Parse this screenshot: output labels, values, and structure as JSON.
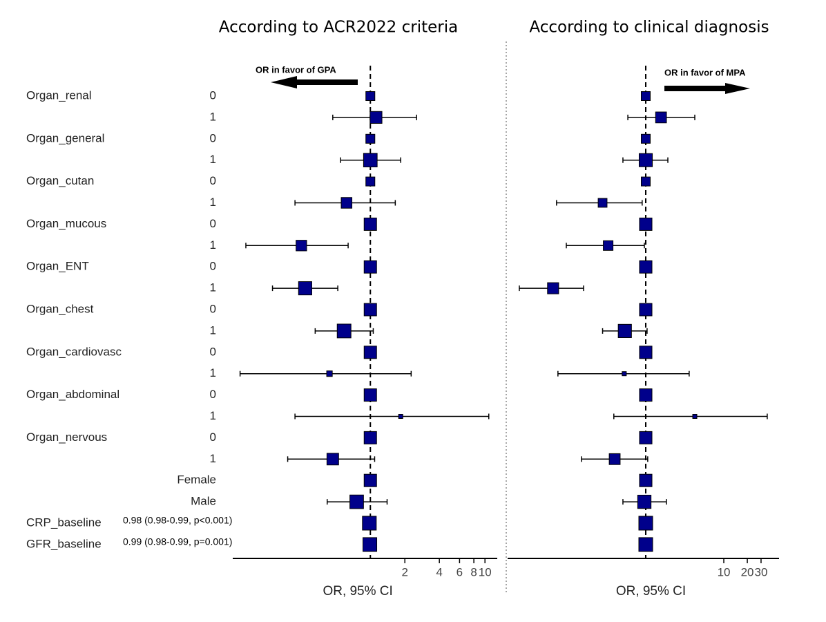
{
  "rows": [
    {
      "group": "Organ_renal",
      "level": "0"
    },
    {
      "level": "1"
    },
    {
      "group": "Organ_general",
      "level": "0"
    },
    {
      "level": "1"
    },
    {
      "group": "Organ_cutan",
      "level": "0"
    },
    {
      "level": "1"
    },
    {
      "group": "Organ_mucous",
      "level": "0"
    },
    {
      "level": "1"
    },
    {
      "group": "Organ_ENT",
      "level": "0"
    },
    {
      "level": "1"
    },
    {
      "group": "Organ_chest",
      "level": "0"
    },
    {
      "level": "1"
    },
    {
      "group": "Organ_cardiovasc",
      "level": "0"
    },
    {
      "level": "1"
    },
    {
      "group": "Organ_abdominal",
      "level": "0"
    },
    {
      "level": "1"
    },
    {
      "group": "Organ_nervous",
      "level": "0"
    },
    {
      "level": "1"
    },
    {
      "level": "Female"
    },
    {
      "level": "Male"
    },
    {
      "group": "CRP_baseline",
      "note": "0.98 (0.98-0.99,  p<0.001)"
    },
    {
      "group": "GFR_baseline",
      "note": "0.99 (0.98-0.99, p=0.001)"
    }
  ],
  "chart_data": [
    {
      "type": "forest",
      "title": "According to ACR2022 criteria",
      "xlabel": "OR, 95% CI",
      "annotation": "OR in favor  of GPA",
      "log": true,
      "color": "#00008b",
      "reference": 1,
      "xlim": [
        0.063,
        12.8
      ],
      "xticks": [
        2,
        4,
        6,
        8,
        10
      ],
      "values": [
        1,
        1.12,
        1,
        1,
        1,
        0.62,
        1,
        0.25,
        1,
        0.27,
        1,
        0.59,
        1,
        0.44,
        1,
        1.84,
        1,
        0.47,
        1,
        0.76,
        0.98,
        0.99
      ],
      "lower": [
        null,
        0.47,
        null,
        0.55,
        null,
        0.22,
        null,
        0.082,
        null,
        0.14,
        null,
        0.33,
        null,
        0.073,
        null,
        0.22,
        null,
        0.19,
        null,
        0.42,
        null,
        null
      ],
      "upper": [
        null,
        2.53,
        null,
        1.84,
        null,
        1.65,
        null,
        0.64,
        null,
        0.52,
        null,
        1.06,
        null,
        2.27,
        null,
        10.8,
        null,
        1.09,
        null,
        1.4,
        null,
        null
      ]
    },
    {
      "type": "forest",
      "title": "According  to clinical diagnosis",
      "xlabel": "OR, 95% CI",
      "annotation": "OR in favor of MPA",
      "log": true,
      "color": "#00008b",
      "reference": 1,
      "xlim": [
        0.017,
        51
      ],
      "xticks": [
        10,
        20,
        30
      ],
      "values": [
        1,
        1.57,
        1,
        1,
        1,
        0.28,
        1,
        0.33,
        1,
        0.065,
        1,
        0.54,
        1,
        0.53,
        1,
        4.25,
        1,
        0.4,
        1,
        0.96,
        1,
        1
      ],
      "lower": [
        null,
        0.59,
        null,
        0.51,
        null,
        0.072,
        null,
        0.096,
        null,
        0.024,
        null,
        0.28,
        null,
        0.075,
        null,
        0.39,
        null,
        0.15,
        null,
        0.51,
        null,
        null
      ],
      "upper": [
        null,
        4.25,
        null,
        1.92,
        null,
        0.9,
        null,
        0.96,
        null,
        0.16,
        null,
        1.04,
        null,
        3.6,
        null,
        36,
        null,
        1.06,
        null,
        1.84,
        null,
        null
      ]
    }
  ]
}
